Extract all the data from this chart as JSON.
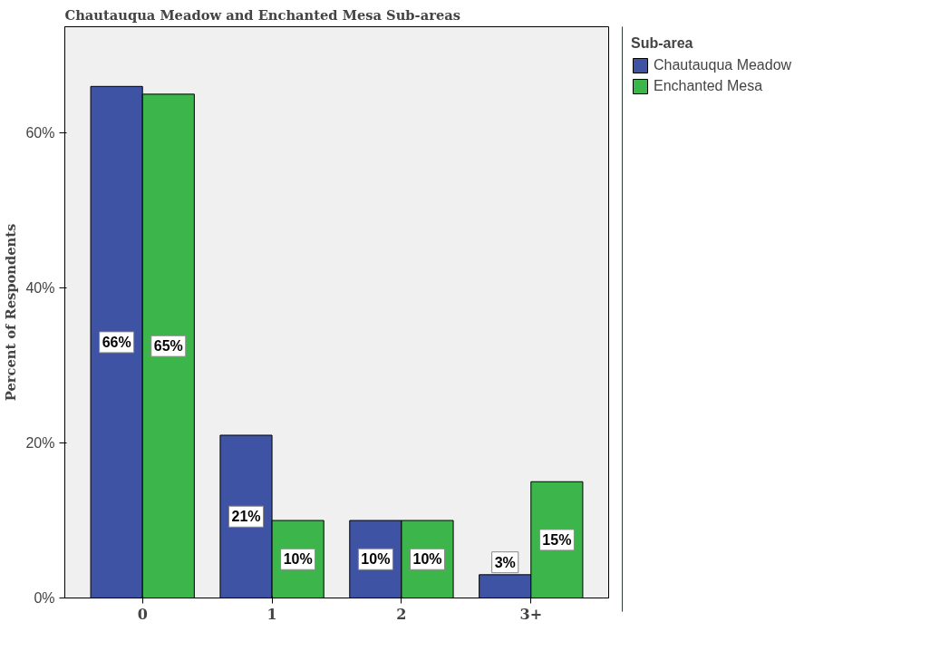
{
  "chart_data": {
    "type": "bar",
    "title": "Chautauqua Meadow and Enchanted Mesa Sub-areas",
    "ylabel": "Percent of Respondents",
    "legend_title": "Sub-area",
    "categories": [
      "0",
      "1",
      "2",
      "3+"
    ],
    "series": [
      {
        "name": "Chautauqua Meadow",
        "color": "#3e53a4",
        "values": [
          66,
          21,
          10,
          3
        ]
      },
      {
        "name": "Enchanted Mesa",
        "color": "#3cb64a",
        "values": [
          65,
          10,
          10,
          15
        ]
      }
    ],
    "ylim": [
      0,
      73.7
    ],
    "yticks": [
      {
        "value": 0,
        "label": "0%"
      },
      {
        "value": 20,
        "label": "20%"
      },
      {
        "value": 40,
        "label": "40%"
      },
      {
        "value": 60,
        "label": "60%"
      }
    ],
    "value_labels": [
      [
        "66%",
        "21%",
        "10%",
        "3%"
      ],
      [
        "65%",
        "10%",
        "10%",
        "15%"
      ]
    ],
    "grid": false,
    "legend": "right"
  }
}
